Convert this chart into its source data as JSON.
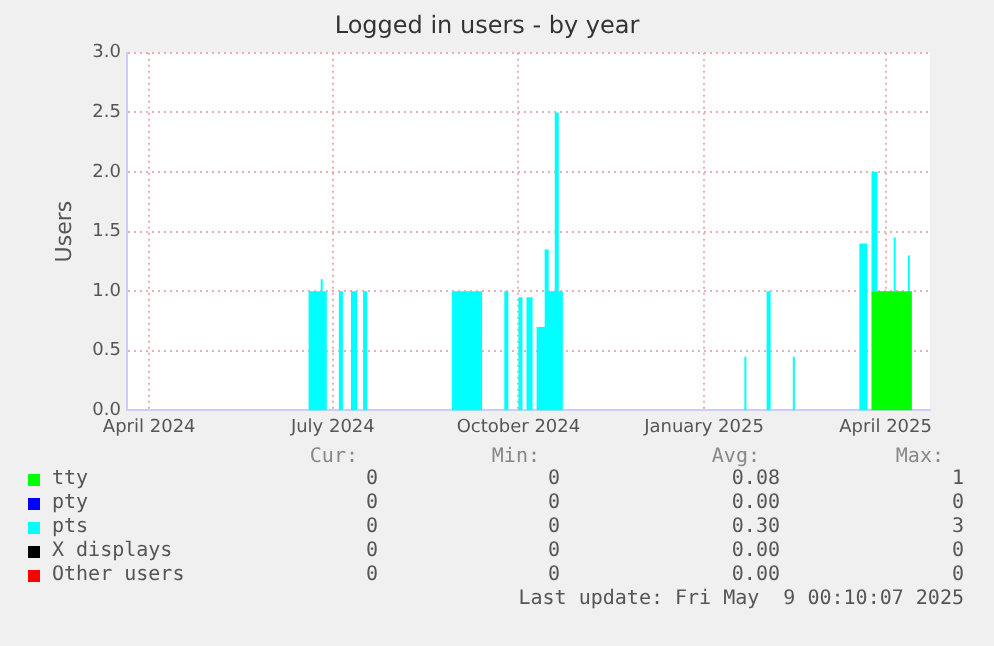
{
  "chart_data": {
    "type": "area",
    "title": "Logged in users - by year",
    "ylabel": "Users",
    "stacked": true,
    "grid": true,
    "legend": "bottom",
    "x": [
      "2024-03-21",
      "2024-06-19",
      "2024-06-25",
      "2024-06-26",
      "2024-06-28",
      "2024-07-04",
      "2024-07-06",
      "2024-07-10",
      "2024-07-13",
      "2024-07-16",
      "2024-07-18",
      "2024-08-29",
      "2024-09-13",
      "2024-09-24",
      "2024-09-26",
      "2024-10-01",
      "2024-10-03",
      "2024-10-05",
      "2024-10-08",
      "2024-10-10",
      "2024-10-14",
      "2024-10-16",
      "2024-10-19",
      "2024-10-21",
      "2024-10-23",
      "2025-01-21",
      "2025-01-22",
      "2025-02-01",
      "2025-02-03",
      "2025-02-14",
      "2025-02-15",
      "2025-03-19",
      "2025-03-23",
      "2025-03-25",
      "2025-03-28",
      "2025-04-05",
      "2025-04-06",
      "2025-04-12",
      "2025-04-13",
      "2025-04-14",
      "2025-04-23"
    ],
    "series": [
      {
        "name": "tty",
        "color": "#00ff00",
        "values": [
          0,
          0,
          0,
          0,
          0,
          0,
          0,
          0,
          0,
          0,
          0,
          0,
          0,
          0,
          0,
          0,
          0,
          0,
          0,
          0,
          0,
          0,
          0,
          0,
          0,
          0,
          0,
          0,
          0,
          0,
          0,
          0,
          0,
          1,
          1,
          1,
          1,
          1,
          1,
          0,
          0
        ]
      },
      {
        "name": "pty",
        "color": "#0000ff",
        "values": [
          null,
          null,
          null,
          null,
          null,
          null,
          null,
          null,
          null,
          null,
          null,
          null,
          null,
          null,
          null,
          null,
          null,
          null,
          null,
          null,
          null,
          null,
          null,
          null,
          null,
          null,
          null,
          null,
          null,
          null,
          null,
          null,
          null,
          null,
          null,
          null,
          null,
          null,
          null,
          null,
          null
        ]
      },
      {
        "name": "pts",
        "color": "#00ffff",
        "values": [
          0,
          1,
          1.1,
          1,
          0,
          1,
          0,
          1,
          0,
          1,
          0,
          1,
          0,
          1,
          0,
          0.95,
          0,
          0.95,
          0,
          0.7,
          1.35,
          1,
          2.5,
          1,
          0,
          0.45,
          0,
          1,
          0,
          0.45,
          0,
          1.4,
          0,
          1,
          0,
          0.45,
          0,
          0.3,
          0,
          0,
          0
        ]
      },
      {
        "name": "X displays",
        "color": "#000000",
        "values": [
          null,
          null,
          null,
          null,
          null,
          null,
          null,
          null,
          null,
          null,
          null,
          null,
          null,
          null,
          null,
          null,
          null,
          null,
          null,
          null,
          null,
          null,
          null,
          null,
          null,
          null,
          null,
          null,
          null,
          null,
          null,
          null,
          null,
          null,
          null,
          null,
          null,
          null,
          null,
          null,
          null
        ]
      },
      {
        "name": "Other users",
        "color": "#ff0000",
        "values": [
          null,
          null,
          null,
          null,
          null,
          null,
          null,
          null,
          null,
          null,
          null,
          null,
          null,
          null,
          null,
          null,
          null,
          null,
          null,
          null,
          null,
          null,
          null,
          null,
          null,
          null,
          null,
          null,
          null,
          null,
          null,
          null,
          null,
          null,
          null,
          null,
          null,
          null,
          null,
          null,
          null
        ]
      }
    ],
    "xlim": [
      "2024-03-21",
      "2025-04-23"
    ],
    "xticks": [
      {
        "value": "2024-04-01",
        "label": "April 2024"
      },
      {
        "value": "2024-07-01",
        "label": "July 2024"
      },
      {
        "value": "2024-10-01",
        "label": "October 2024"
      },
      {
        "value": "2025-01-01",
        "label": "January 2025"
      },
      {
        "value": "2025-04-01",
        "label": "April 2025"
      }
    ],
    "ylim": [
      0,
      3
    ],
    "yticks": [
      {
        "value": 0,
        "label": "0.0"
      },
      {
        "value": 0.5,
        "label": "0.5"
      },
      {
        "value": 1,
        "label": "1.0"
      },
      {
        "value": 1.5,
        "label": "1.5"
      },
      {
        "value": 2,
        "label": "2.0"
      },
      {
        "value": 2.5,
        "label": "2.5"
      },
      {
        "value": 3,
        "label": "3.0"
      }
    ],
    "annotations": [
      "Cur:",
      "Min:",
      "Avg:",
      "Max:",
      "0",
      "0",
      "0.08",
      "1",
      "0",
      "0",
      "0.00",
      "0",
      "0",
      "0",
      "0.30",
      "3",
      "0",
      "0",
      "0.00",
      "0",
      "0",
      "0",
      "0.00",
      "0",
      "Last update: Fri May  9 00:10:07 2025"
    ]
  }
}
